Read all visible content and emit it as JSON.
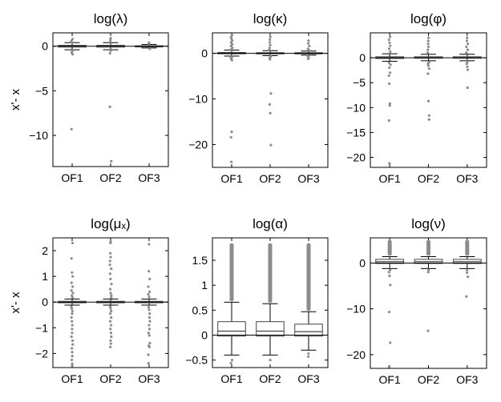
{
  "chart_data": [
    {
      "type": "box",
      "title": "log(λ)",
      "ylabel": "x'- x",
      "categories": [
        "OF1",
        "OF2",
        "OF3"
      ],
      "ylim": [
        -13.5,
        1.5
      ],
      "yticks": [
        0,
        -5,
        -10
      ],
      "ytick_labels": [
        "0",
        "−5",
        "−10"
      ],
      "zero_line": true,
      "boxes": [
        {
          "q1": -0.1,
          "median": 0,
          "q3": 0.1,
          "whisker_low": -0.4,
          "whisker_high": 0.4
        },
        {
          "q1": -0.1,
          "median": 0,
          "q3": 0.1,
          "whisker_low": -0.4,
          "whisker_high": 0.4
        },
        {
          "q1": -0.05,
          "median": 0,
          "q3": 0.05,
          "whisker_low": -0.2,
          "whisker_high": 0.2
        }
      ],
      "outliers": [
        [
          0.8,
          0.6,
          0.4,
          -0.5,
          -0.7,
          -0.9,
          -9.3
        ],
        [
          0.9,
          0.7,
          0.5,
          -0.5,
          -0.8,
          -6.8,
          -12.9
        ],
        [
          0.4,
          0.3,
          -0.3
        ]
      ]
    },
    {
      "type": "box",
      "title": "log(κ)",
      "ylabel": "",
      "categories": [
        "OF1",
        "OF2",
        "OF3"
      ],
      "ylim": [
        -25,
        4.5
      ],
      "yticks": [
        0,
        -10,
        -20
      ],
      "ytick_labels": [
        "0",
        "−10",
        "−20"
      ],
      "zero_line": true,
      "boxes": [
        {
          "q1": -0.1,
          "median": 0,
          "q3": 0.2,
          "whisker_low": -0.6,
          "whisker_high": 0.7
        },
        {
          "q1": -0.1,
          "median": 0,
          "q3": 0.15,
          "whisker_low": -0.5,
          "whisker_high": 0.6
        },
        {
          "q1": -0.05,
          "median": 0,
          "q3": 0.15,
          "whisker_low": -0.4,
          "whisker_high": 0.5
        }
      ],
      "outliers": [
        [
          4.0,
          3.6,
          3.2,
          2.8,
          2.4,
          2.0,
          1.6,
          1.2,
          0.9,
          -0.8,
          -1.0,
          -1.2,
          -1.5,
          -17.2,
          -18.4,
          -23.8
        ],
        [
          3.6,
          3.0,
          2.4,
          1.8,
          1.2,
          0.8,
          -0.7,
          -1.0,
          -1.3,
          -8.8,
          -11.2,
          -13.1,
          -20.1
        ],
        [
          2.8,
          2.2,
          1.6,
          1.0,
          0.7,
          -0.6,
          -0.9,
          -1.2
        ]
      ]
    },
    {
      "type": "box",
      "title": "log(φ)",
      "ylabel": "",
      "categories": [
        "OF1",
        "OF2",
        "OF3"
      ],
      "ylim": [
        -22,
        5
      ],
      "yticks": [
        0,
        -5,
        -10,
        -15,
        -20
      ],
      "ytick_labels": [
        "0",
        "−5",
        "−10",
        "−15",
        "−20"
      ],
      "zero_line": true,
      "boxes": [
        {
          "q1": -0.15,
          "median": 0,
          "q3": 0.2,
          "whisker_low": -0.7,
          "whisker_high": 0.8
        },
        {
          "q1": -0.1,
          "median": 0,
          "q3": 0.2,
          "whisker_low": -0.6,
          "whisker_high": 0.7
        },
        {
          "q1": -0.1,
          "median": 0,
          "q3": 0.2,
          "whisker_low": -0.6,
          "whisker_high": 0.7
        }
      ],
      "outliers": [
        [
          4.2,
          3.6,
          3.0,
          2.4,
          1.8,
          1.2,
          -1.0,
          -1.4,
          -2.0,
          -3.0,
          -3.6,
          -5.2,
          -9.2,
          -9.6,
          -12.6,
          -21.2
        ],
        [
          4.0,
          3.4,
          2.8,
          2.2,
          1.6,
          1.0,
          -0.9,
          -1.2,
          -1.6,
          -2.2,
          -3.2,
          -8.7,
          -11.6,
          -12.4
        ],
        [
          4.0,
          3.4,
          2.8,
          2.2,
          1.6,
          1.0,
          -0.8,
          -1.2,
          -1.8,
          -2.4,
          -6.0
        ]
      ]
    },
    {
      "type": "box",
      "title": "log(μₓ)",
      "ylabel": "x'- x",
      "categories": [
        "OF1",
        "OF2",
        "OF3"
      ],
      "ylim": [
        -2.55,
        2.5
      ],
      "yticks": [
        2,
        1,
        0,
        -1,
        -2
      ],
      "ytick_labels": [
        "2",
        "1",
        "0",
        "−1",
        "−2"
      ],
      "zero_line": true,
      "boxes": [
        {
          "q1": -0.03,
          "median": 0,
          "q3": 0.03,
          "whisker_low": -0.12,
          "whisker_high": 0.12
        },
        {
          "q1": -0.03,
          "median": 0,
          "q3": 0.03,
          "whisker_low": -0.12,
          "whisker_high": 0.12
        },
        {
          "q1": -0.03,
          "median": 0,
          "q3": 0.03,
          "whisker_low": -0.12,
          "whisker_high": 0.12
        }
      ],
      "outliers": [
        [
          2.3,
          1.7,
          1.15,
          1.0,
          0.75,
          0.6,
          0.45,
          0.35,
          0.25,
          0.18,
          -0.18,
          -0.25,
          -0.35,
          -0.45,
          -0.6,
          -0.75,
          -0.9,
          -1.05,
          -1.2,
          -1.35,
          -1.5,
          -1.65,
          -1.8,
          -1.95,
          -2.1,
          -2.25,
          -2.4,
          -2.48
        ],
        [
          2.35,
          2.3,
          1.9,
          1.75,
          1.6,
          1.45,
          1.3,
          1.1,
          0.9,
          0.7,
          0.5,
          0.35,
          0.25,
          0.18,
          -0.18,
          -0.25,
          -0.35,
          -0.45,
          -0.6,
          -0.75,
          -0.9,
          -1.05,
          -1.2,
          -1.35,
          -1.5,
          -1.62,
          -1.75
        ],
        [
          2.25,
          1.2,
          0.9,
          0.6,
          0.4,
          0.3,
          0.2,
          -0.2,
          -0.3,
          -0.45,
          -0.6,
          -0.75,
          -0.9,
          -1.05,
          -1.2,
          -1.3,
          -1.6,
          -1.7,
          -1.75,
          -2.05,
          -2.38
        ]
      ]
    },
    {
      "type": "box",
      "title": "log(α)",
      "ylabel": "",
      "categories": [
        "OF1",
        "OF2",
        "OF3"
      ],
      "ylim": [
        -0.65,
        1.95
      ],
      "yticks": [
        1.5,
        1,
        0.5,
        0,
        -0.5
      ],
      "ytick_labels": [
        "1.5",
        "1",
        "0.5",
        "0",
        "−0.5"
      ],
      "zero_line": true,
      "boxes": [
        {
          "q1": -0.02,
          "median": 0.08,
          "q3": 0.27,
          "whisker_low": -0.4,
          "whisker_high": 0.66
        },
        {
          "q1": -0.02,
          "median": 0.08,
          "q3": 0.27,
          "whisker_low": -0.4,
          "whisker_high": 0.63
        },
        {
          "q1": -0.02,
          "median": 0.07,
          "q3": 0.22,
          "whisker_low": -0.3,
          "whisker_high": 0.47
        }
      ],
      "outlier_bands": [
        {
          "from": 0.68,
          "to": 1.84
        },
        {
          "from": 0.65,
          "to": 1.84
        },
        {
          "from": 0.49,
          "to": 1.84
        }
      ],
      "outliers": [
        [
          -0.5,
          -0.56
        ],
        [
          -0.5
        ],
        [
          -0.37,
          -0.43
        ]
      ]
    },
    {
      "type": "box",
      "title": "log(ν)",
      "ylabel": "",
      "categories": [
        "OF1",
        "OF2",
        "OF3"
      ],
      "ylim": [
        -23,
        5.5
      ],
      "yticks": [
        0,
        -10,
        -20
      ],
      "ytick_labels": [
        "0",
        "−10",
        "−20"
      ],
      "zero_line": true,
      "boxes": [
        {
          "q1": -0.1,
          "median": 0.3,
          "q3": 0.8,
          "whisker_low": -1.2,
          "whisker_high": 1.4
        },
        {
          "q1": -0.1,
          "median": 0.3,
          "q3": 0.8,
          "whisker_low": -1.2,
          "whisker_high": 1.4
        },
        {
          "q1": -0.1,
          "median": 0.3,
          "q3": 0.8,
          "whisker_low": -1.2,
          "whisker_high": 1.4
        }
      ],
      "outlier_bands": [
        {
          "from": 1.6,
          "to": 5.0
        },
        {
          "from": 1.6,
          "to": 5.0
        },
        {
          "from": 1.6,
          "to": 5.0
        }
      ],
      "outliers": [
        [
          -1.5,
          -2.0,
          -2.8,
          -4.8,
          -10.7,
          -17.4,
          -22.6
        ],
        [
          -1.5,
          -2.0,
          -14.8
        ],
        [
          -1.5,
          -2.1,
          -3.0,
          -7.3
        ]
      ]
    }
  ]
}
